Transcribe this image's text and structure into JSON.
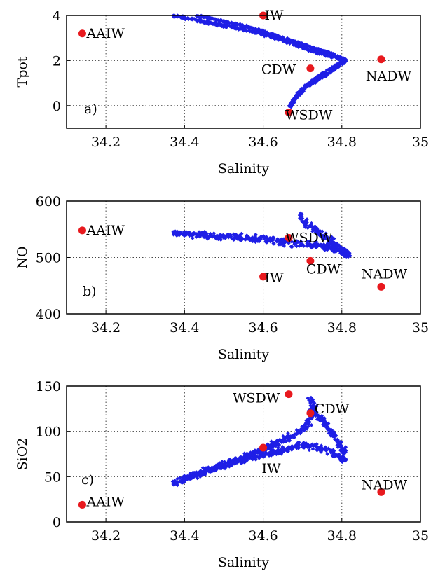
{
  "chart_data": [
    {
      "type": "scatter",
      "panel": "a)",
      "xlabel": "Salinity",
      "ylabel": "Tpot",
      "xlim": [
        34.1,
        35.0
      ],
      "ylim": [
        -1,
        4
      ],
      "xticks": [
        34.2,
        34.4,
        34.6,
        34.8,
        35
      ],
      "xtick_labels": [
        "34.2",
        "34.4",
        "34.6",
        "34.8",
        "35"
      ],
      "yticks": [
        0,
        2,
        4
      ],
      "ytick_labels": [
        "0",
        "2",
        "4"
      ],
      "grid": true,
      "cloud_color": "#1f1fe6",
      "cloud_bands": [
        {
          "path": [
            [
              34.37,
              4.0
            ],
            [
              34.45,
              3.72
            ],
            [
              34.56,
              3.35
            ],
            [
              34.66,
              2.85
            ],
            [
              34.74,
              2.35
            ],
            [
              34.81,
              2.0
            ],
            [
              34.76,
              1.35
            ],
            [
              34.71,
              0.85
            ],
            [
              34.68,
              0.3
            ],
            [
              34.665,
              -0.1
            ]
          ],
          "halfwidth": 0.09
        },
        {
          "path": [
            [
              34.43,
              4.0
            ],
            [
              34.55,
              3.55
            ],
            [
              34.66,
              2.95
            ],
            [
              34.75,
              2.45
            ],
            [
              34.81,
              2.05
            ],
            [
              34.74,
              1.3
            ],
            [
              34.69,
              0.6
            ],
            [
              34.67,
              0.0
            ]
          ],
          "halfwidth": 0.06
        }
      ],
      "markers": [
        {
          "label": "AAIW",
          "x": 34.14,
          "y": 3.2
        },
        {
          "label": "IW",
          "x": 34.6,
          "y": 4.0
        },
        {
          "label": "CDW",
          "x": 34.72,
          "y": 1.65
        },
        {
          "label": "NADW",
          "x": 34.9,
          "y": 2.05
        },
        {
          "label": "WSDW",
          "x": 34.665,
          "y": -0.3
        }
      ],
      "marker_color": "#e8191e"
    },
    {
      "type": "scatter",
      "panel": "b)",
      "xlabel": "Salinity",
      "ylabel": "NO",
      "xlim": [
        34.1,
        35.0
      ],
      "ylim": [
        400,
        600
      ],
      "xticks": [
        34.2,
        34.4,
        34.6,
        34.8,
        35
      ],
      "xtick_labels": [
        "34.2",
        "34.4",
        "34.6",
        "34.8",
        "35"
      ],
      "yticks": [
        400,
        500,
        600
      ],
      "ytick_labels": [
        "400",
        "500",
        "600"
      ],
      "grid": true,
      "cloud_color": "#1f1fe6",
      "cloud_bands": [
        {
          "path": [
            [
              34.37,
              542
            ],
            [
              34.45,
              540
            ],
            [
              34.55,
              535
            ],
            [
              34.63,
              530
            ],
            [
              34.7,
              525
            ],
            [
              34.76,
              518
            ],
            [
              34.82,
              508
            ]
          ],
          "halfwidth": 9
        },
        {
          "path": [
            [
              34.69,
              575
            ],
            [
              34.72,
              555
            ],
            [
              34.76,
              535
            ],
            [
              34.8,
              512
            ],
            [
              34.82,
              500
            ]
          ],
          "halfwidth": 9
        }
      ],
      "markers": [
        {
          "label": "AAIW",
          "x": 34.14,
          "y": 548
        },
        {
          "label": "WSDW",
          "x": 34.665,
          "y": 535
        },
        {
          "label": "CDW",
          "x": 34.72,
          "y": 494
        },
        {
          "label": "IW",
          "x": 34.6,
          "y": 466
        },
        {
          "label": "NADW",
          "x": 34.9,
          "y": 448
        }
      ],
      "marker_color": "#e8191e"
    },
    {
      "type": "scatter",
      "panel": "c)",
      "xlabel": "Salinity",
      "ylabel": "SiO2",
      "xlim": [
        34.1,
        35.0
      ],
      "ylim": [
        0,
        150
      ],
      "xticks": [
        34.2,
        34.4,
        34.6,
        34.8,
        35
      ],
      "xtick_labels": [
        "34.2",
        "34.4",
        "34.6",
        "34.8",
        "35"
      ],
      "yticks": [
        0,
        50,
        100,
        150
      ],
      "ytick_labels": [
        "0",
        "50",
        "100",
        "150"
      ],
      "grid": true,
      "cloud_color": "#1f1fe6",
      "cloud_bands": [
        {
          "path": [
            [
              34.37,
              42
            ],
            [
              34.45,
              55
            ],
            [
              34.53,
              68
            ],
            [
              34.6,
              80
            ],
            [
              34.66,
              92
            ],
            [
              34.71,
              105
            ],
            [
              34.73,
              125
            ],
            [
              34.72,
              138
            ]
          ],
          "halfwidth": 5
        },
        {
          "path": [
            [
              34.4,
              48
            ],
            [
              34.48,
              60
            ],
            [
              34.56,
              70
            ],
            [
              34.64,
              78
            ],
            [
              34.7,
              85
            ],
            [
              34.76,
              80
            ],
            [
              34.81,
              68
            ]
          ],
          "halfwidth": 5
        },
        {
          "path": [
            [
              34.72,
              125
            ],
            [
              34.75,
              112
            ],
            [
              34.78,
              95
            ],
            [
              34.81,
              75
            ]
          ],
          "halfwidth": 5
        }
      ],
      "markers": [
        {
          "label": "WSDW",
          "x": 34.665,
          "y": 141
        },
        {
          "label": "CDW",
          "x": 34.72,
          "y": 120
        },
        {
          "label": "IW",
          "x": 34.6,
          "y": 82
        },
        {
          "label": "NADW",
          "x": 34.9,
          "y": 33
        },
        {
          "label": "AAIW",
          "x": 34.14,
          "y": 19
        }
      ],
      "marker_color": "#e8191e"
    }
  ]
}
